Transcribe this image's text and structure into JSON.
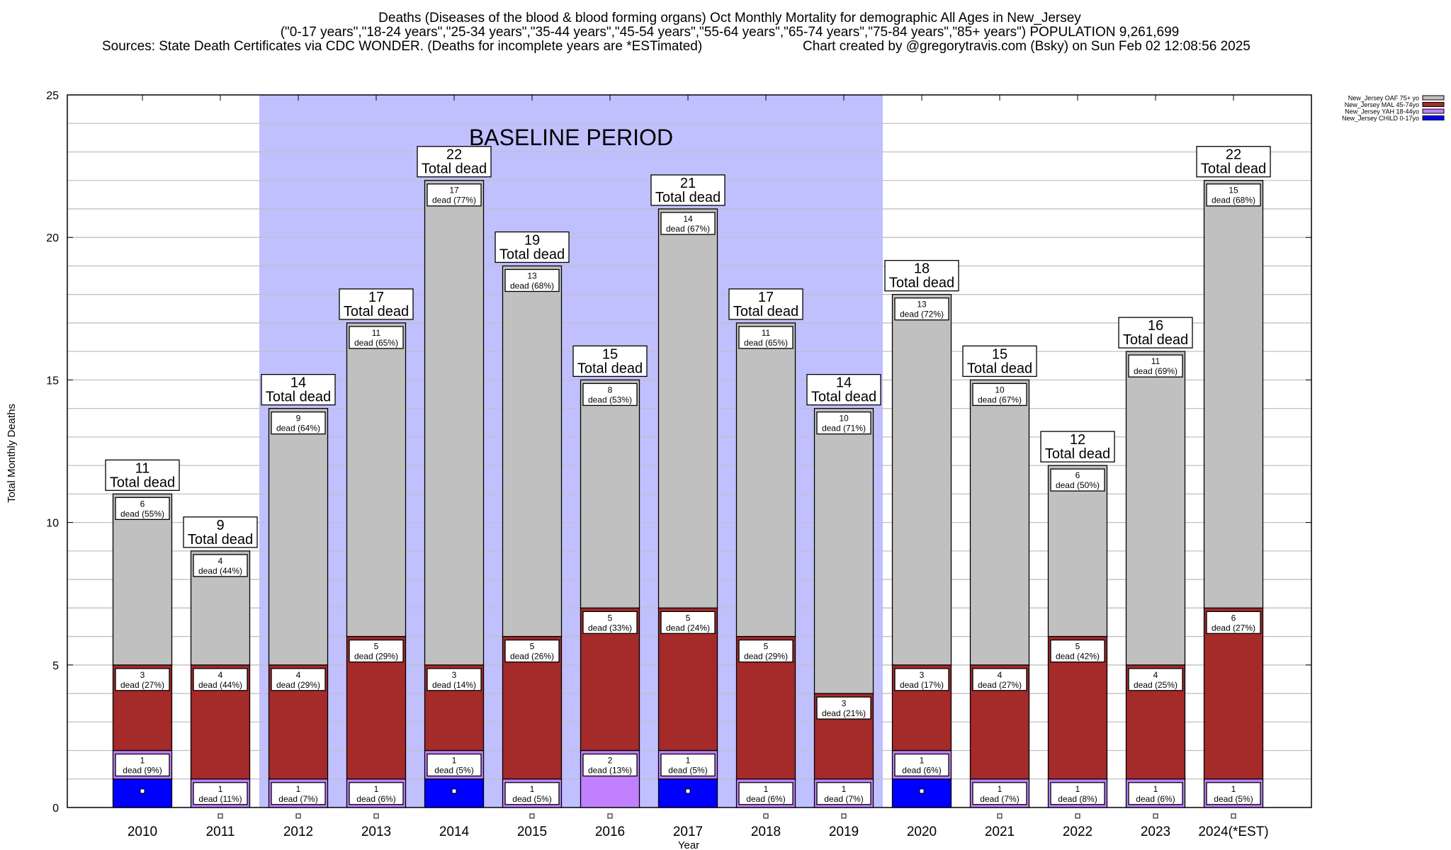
{
  "chart_data": {
    "type": "bar",
    "stacked": true,
    "title_lines": [
      "Deaths (Diseases of the blood & blood forming organs) Oct Monthly Mortality for demographic All Ages in New_Jersey",
      "(\"0-17 years\",\"18-24 years\",\"25-34 years\",\"35-44 years\",\"45-54 years\",\"55-64 years\",\"65-74 years\",\"75-84 years\",\"85+ years\") POPULATION 9,261,699",
      "Sources: State Death Certificates via CDC WONDER. (Deaths for incomplete years are *ESTimated)",
      "Chart created by @gregorytravis.com (Bsky) on Sun Feb 02 12:08:56 2025"
    ],
    "xlabel": "Year",
    "ylabel": "Total Monthly Deaths",
    "ylim": [
      0,
      25
    ],
    "yticks": [
      0,
      5,
      10,
      15,
      20,
      25
    ],
    "grid": true,
    "legend_position": "top-right",
    "baseline": {
      "label": "BASELINE PERIOD",
      "from": "2012",
      "to": "2019",
      "color": "#c0c0ff"
    },
    "categories": [
      "2010",
      "2011",
      "2012",
      "2013",
      "2014",
      "2015",
      "2016",
      "2017",
      "2018",
      "2019",
      "2020",
      "2021",
      "2022",
      "2023",
      "2024(*EST)"
    ],
    "series": [
      {
        "key": "child",
        "name": "New_Jersey CHILD 0-17yo",
        "color": "#0000ff",
        "values": [
          1,
          0,
          0,
          0,
          1,
          0,
          0,
          1,
          0,
          0,
          1,
          0,
          0,
          0,
          0
        ],
        "pct": [
          "",
          "",
          "",
          "",
          "",
          "",
          "",
          "",
          "",
          "",
          "",
          "",
          "",
          "",
          ""
        ]
      },
      {
        "key": "yah",
        "name": "New_Jersey YAH 18-44yo",
        "color": "#c080ff",
        "values": [
          1,
          1,
          1,
          1,
          1,
          1,
          2,
          1,
          1,
          1,
          1,
          1,
          1,
          1,
          1
        ],
        "pct": [
          "9%",
          "11%",
          "7%",
          "6%",
          "5%",
          "5%",
          "13%",
          "5%",
          "6%",
          "7%",
          "6%",
          "7%",
          "8%",
          "6%",
          "5%"
        ]
      },
      {
        "key": "mal",
        "name": "New_Jersey MAL 45-74yo",
        "color": "#a52a2a",
        "values": [
          3,
          4,
          4,
          5,
          3,
          5,
          5,
          5,
          5,
          3,
          3,
          4,
          5,
          4,
          6
        ],
        "pct": [
          "27%",
          "44%",
          "29%",
          "29%",
          "14%",
          "26%",
          "33%",
          "24%",
          "29%",
          "21%",
          "17%",
          "27%",
          "42%",
          "25%",
          "27%"
        ]
      },
      {
        "key": "oaf",
        "name": "New_Jersey OAF 75+ yo",
        "color": "#c0c0c0",
        "values": [
          6,
          4,
          9,
          11,
          17,
          13,
          8,
          14,
          11,
          10,
          13,
          10,
          6,
          11,
          15
        ],
        "pct": [
          "55%",
          "44%",
          "64%",
          "65%",
          "77%",
          "68%",
          "53%",
          "67%",
          "65%",
          "71%",
          "72%",
          "67%",
          "50%",
          "69%",
          "68%"
        ]
      }
    ],
    "totals": [
      11,
      9,
      14,
      17,
      22,
      19,
      15,
      21,
      17,
      14,
      18,
      15,
      12,
      16,
      22
    ],
    "total_suffix": "Total dead",
    "segment_word": "dead"
  }
}
